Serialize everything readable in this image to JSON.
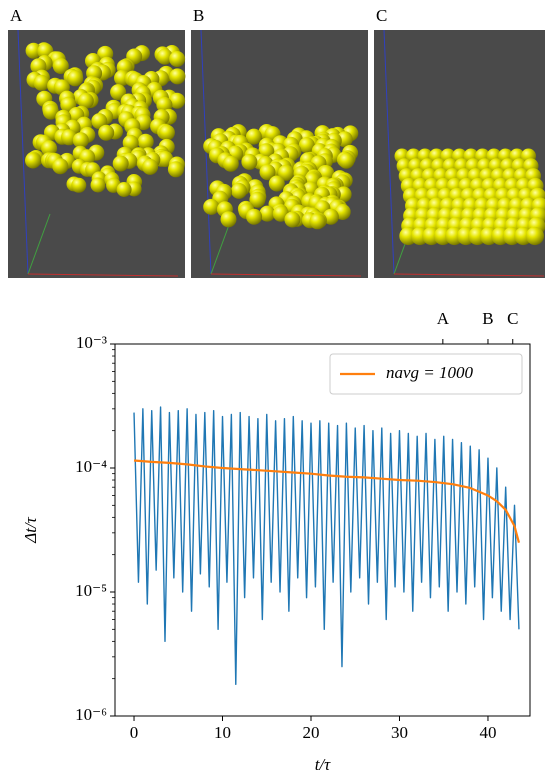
{
  "panels": [
    {
      "label": "A"
    },
    {
      "label": "B"
    },
    {
      "label": "C"
    }
  ],
  "chart_data": {
    "type": "line",
    "xlabel": "t/τ",
    "ylabel": "Δt/τ",
    "xlim": [
      -2.15,
      44.75
    ],
    "xticks": [
      0,
      10,
      20,
      30,
      40
    ],
    "x2ticks": [
      {
        "value": 34.9,
        "label": "A"
      },
      {
        "value": 40.0,
        "label": "B"
      },
      {
        "value": 42.8,
        "label": "C"
      }
    ],
    "ylim": [
      1e-06,
      0.001
    ],
    "log_y": true,
    "yticks": [
      {
        "value": 1e-06,
        "label": "10⁻⁶"
      },
      {
        "value": 1e-05,
        "label": "10⁻⁵"
      },
      {
        "value": 0.0001,
        "label": "10⁻⁴"
      },
      {
        "value": 0.001,
        "label": "10⁻³"
      }
    ],
    "legend": "upper right",
    "series": [
      {
        "color": "#1f77b4",
        "x": [
          0,
          0.5,
          1,
          1.5,
          2,
          2.5,
          3,
          3.5,
          4,
          4.5,
          5,
          5.5,
          6,
          6.5,
          7,
          7.5,
          8,
          8.5,
          9,
          9.5,
          10,
          10.5,
          11,
          11.5,
          12,
          12.5,
          13,
          13.5,
          14,
          14.5,
          15,
          15.5,
          16,
          16.5,
          17,
          17.5,
          18,
          18.5,
          19,
          19.5,
          20,
          20.5,
          21,
          21.5,
          22,
          22.5,
          23,
          23.5,
          24,
          24.5,
          25,
          25.5,
          26,
          26.5,
          27,
          27.5,
          28,
          28.5,
          29,
          29.5,
          30,
          30.5,
          31,
          31.5,
          32,
          32.5,
          33,
          33.5,
          34,
          34.5,
          35,
          35.5,
          36,
          36.5,
          37,
          37.5,
          38,
          38.5,
          39,
          39.5,
          40,
          40.5,
          41,
          41.5,
          42,
          42.5,
          43,
          43.5
        ],
        "values": [
          0.00028,
          1.2e-05,
          0.0003,
          8e-06,
          0.00029,
          1.5e-05,
          0.00031,
          4e-06,
          0.00028,
          1.3e-05,
          0.00029,
          1e-05,
          0.0003,
          7e-06,
          0.00027,
          1.4e-05,
          0.00028,
          1.1e-05,
          0.00029,
          5e-06,
          0.00026,
          1.2e-05,
          0.00027,
          1.8e-06,
          0.00028,
          9e-06,
          0.00026,
          1.3e-05,
          0.00025,
          6e-06,
          0.00027,
          1.2e-05,
          0.00024,
          1e-05,
          0.00025,
          7e-06,
          0.00026,
          1.3e-05,
          0.00024,
          9e-06,
          0.00023,
          1.1e-05,
          0.00024,
          5e-06,
          0.00023,
          1.2e-05,
          0.00022,
          2.5e-06,
          0.00023,
          1e-05,
          0.00021,
          1.3e-05,
          0.00022,
          8e-06,
          0.0002,
          1.2e-05,
          0.00021,
          6e-06,
          0.00019,
          1.1e-05,
          0.0002,
          1e-05,
          0.00019,
          7e-06,
          0.00018,
          1.2e-05,
          0.00019,
          9e-06,
          0.00017,
          1.1e-05,
          0.00018,
          7e-06,
          0.00017,
          1e-05,
          0.00016,
          8e-06,
          0.00015,
          1.1e-05,
          0.00014,
          6e-06,
          0.00012,
          9e-06,
          0.0001,
          7e-06,
          7e-05,
          6e-06,
          5e-05,
          5e-06
        ]
      },
      {
        "name": "navg = 1000",
        "color": "#ff7f0e",
        "x": [
          0,
          2,
          4,
          6,
          8,
          10,
          12,
          14,
          16,
          18,
          20,
          22,
          24,
          26,
          28,
          30,
          32,
          34,
          36,
          38,
          40,
          41,
          42,
          43,
          43.5
        ],
        "values": [
          0.000115,
          0.000112,
          0.00011,
          0.000107,
          0.000103,
          0.0001,
          9.8e-05,
          9.6e-05,
          9.4e-05,
          9.2e-05,
          9e-05,
          8.7e-05,
          8.5e-05,
          8.4e-05,
          8.2e-05,
          8e-05,
          7.9e-05,
          7.7e-05,
          7.4e-05,
          6.9e-05,
          6e-05,
          5.4e-05,
          4.6e-05,
          3.4e-05,
          2.5e-05
        ]
      }
    ]
  }
}
